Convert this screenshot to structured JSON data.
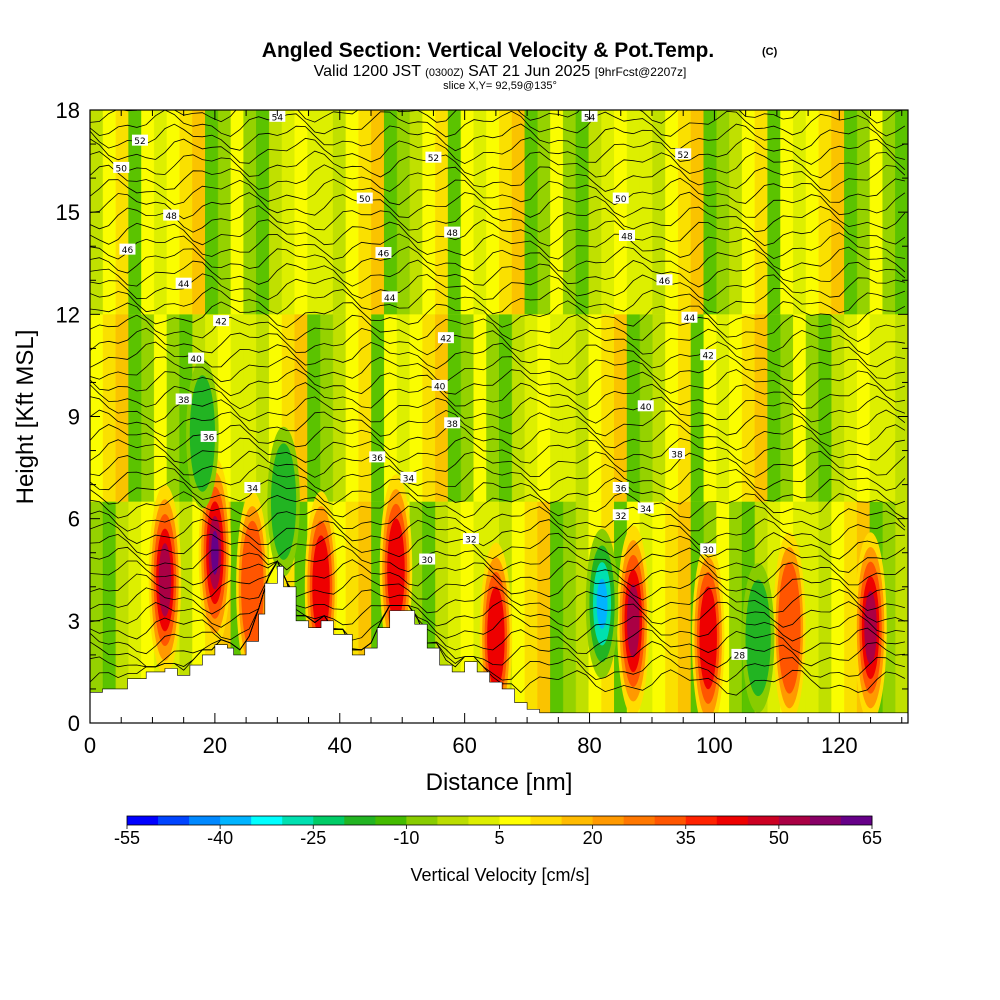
{
  "chart_data": {
    "type": "heatmap",
    "title": "Angled Section: Vertical Velocity & Pot.Temp.",
    "title_tag": "(C)",
    "subtitle": {
      "prefix": "Valid 1200 JST",
      "utc": "(0300Z)",
      "date": "SAT 21 Jun 2025",
      "forecast": "[9hrFcst@2207z]"
    },
    "slice_label": "slice X,Y= 92,59@135°",
    "xlabel": "Distance [nm]",
    "ylabel": "Height [Kft MSL]",
    "xlim": [
      0,
      131
    ],
    "ylim": [
      0,
      18
    ],
    "x_ticks": [
      0,
      20,
      40,
      60,
      80,
      100,
      120
    ],
    "y_ticks": [
      0,
      3,
      6,
      9,
      12,
      15,
      18
    ],
    "colorbar": {
      "title": "Vertical Velocity [cm/s]",
      "min": -55,
      "max": 65,
      "step": 5,
      "tick_labels": [
        "-55",
        "-40",
        "-25",
        "-10",
        "5",
        "20",
        "35",
        "50",
        "65"
      ],
      "colors": [
        "#0000ff",
        "#0044ff",
        "#0088ff",
        "#00b4ff",
        "#00ffff",
        "#00e0b0",
        "#00cc66",
        "#22b422",
        "#44bb00",
        "#88cc00",
        "#bbdd00",
        "#ddee00",
        "#ffff00",
        "#ffdd00",
        "#ffbb00",
        "#ff9900",
        "#ff7700",
        "#ff5500",
        "#ff2200",
        "#ee0000",
        "#cc0022",
        "#aa0044",
        "#880066",
        "#660088"
      ]
    },
    "field_description_units": "cm/s",
    "terrain_profile_kft": [
      [
        0,
        0.9
      ],
      [
        2,
        1.0
      ],
      [
        6,
        1.3
      ],
      [
        9,
        1.5
      ],
      [
        12,
        1.6
      ],
      [
        14,
        1.4
      ],
      [
        16,
        1.7
      ],
      [
        18,
        2.0
      ],
      [
        20,
        2.3
      ],
      [
        22,
        2.2
      ],
      [
        23,
        2.0
      ],
      [
        25,
        2.4
      ],
      [
        27,
        3.2
      ],
      [
        28,
        4.1
      ],
      [
        30,
        4.6
      ],
      [
        31,
        4.0
      ],
      [
        33,
        3.0
      ],
      [
        35,
        2.8
      ],
      [
        37,
        3.0
      ],
      [
        39,
        2.6
      ],
      [
        42,
        2.0
      ],
      [
        44,
        2.2
      ],
      [
        46,
        2.8
      ],
      [
        48,
        3.3
      ],
      [
        50,
        3.3
      ],
      [
        52,
        2.9
      ],
      [
        54,
        2.2
      ],
      [
        56,
        1.7
      ],
      [
        58,
        1.5
      ],
      [
        60,
        1.8
      ],
      [
        62,
        1.5
      ],
      [
        64,
        1.2
      ],
      [
        66,
        1.0
      ],
      [
        68,
        0.6
      ],
      [
        70,
        0.4
      ],
      [
        72,
        0.3
      ],
      [
        131,
        0.3
      ]
    ],
    "updraft_cores": [
      {
        "x": 12,
        "z": 4.2,
        "w": 50
      },
      {
        "x": 20,
        "z": 5.0,
        "w": 60
      },
      {
        "x": 26,
        "z": 4.0,
        "w": 35
      },
      {
        "x": 37,
        "z": 4.0,
        "w": 45
      },
      {
        "x": 49,
        "z": 4.5,
        "w": 40
      },
      {
        "x": 65,
        "z": 2.5,
        "w": 40
      },
      {
        "x": 87,
        "z": 3.0,
        "w": 50
      },
      {
        "x": 99,
        "z": 2.5,
        "w": 45
      },
      {
        "x": 112,
        "z": 2.8,
        "w": 30
      },
      {
        "x": 125,
        "z": 2.8,
        "w": 50
      }
    ],
    "downdraft_cores": [
      {
        "x": 82,
        "z": 3.5,
        "w": -45
      },
      {
        "x": 18,
        "z": 8.5,
        "w": -25
      },
      {
        "x": 31,
        "z": 6.5,
        "w": -20
      },
      {
        "x": 107,
        "z": 2.5,
        "w": -20
      }
    ],
    "isentrope_labels": [
      {
        "x": 30,
        "z": 17.8,
        "text": "54"
      },
      {
        "x": 80,
        "z": 17.8,
        "text": "54"
      },
      {
        "x": 8,
        "z": 17.1,
        "text": "52"
      },
      {
        "x": 55,
        "z": 16.6,
        "text": "52"
      },
      {
        "x": 95,
        "z": 16.7,
        "text": "52"
      },
      {
        "x": 5,
        "z": 16.3,
        "text": "50"
      },
      {
        "x": 44,
        "z": 15.4,
        "text": "50"
      },
      {
        "x": 85,
        "z": 15.4,
        "text": "50"
      },
      {
        "x": 13,
        "z": 14.9,
        "text": "48"
      },
      {
        "x": 58,
        "z": 14.4,
        "text": "48"
      },
      {
        "x": 86,
        "z": 14.3,
        "text": "48"
      },
      {
        "x": 6,
        "z": 13.9,
        "text": "46"
      },
      {
        "x": 47,
        "z": 13.8,
        "text": "46"
      },
      {
        "x": 92,
        "z": 13.0,
        "text": "46"
      },
      {
        "x": 15,
        "z": 12.9,
        "text": "44"
      },
      {
        "x": 48,
        "z": 12.5,
        "text": "44"
      },
      {
        "x": 96,
        "z": 11.9,
        "text": "44"
      },
      {
        "x": 21,
        "z": 11.8,
        "text": "42"
      },
      {
        "x": 57,
        "z": 11.3,
        "text": "42"
      },
      {
        "x": 99,
        "z": 10.8,
        "text": "42"
      },
      {
        "x": 17,
        "z": 10.7,
        "text": "40"
      },
      {
        "x": 56,
        "z": 9.9,
        "text": "40"
      },
      {
        "x": 89,
        "z": 9.3,
        "text": "40"
      },
      {
        "x": 15,
        "z": 9.5,
        "text": "38"
      },
      {
        "x": 58,
        "z": 8.8,
        "text": "38"
      },
      {
        "x": 94,
        "z": 7.9,
        "text": "38"
      },
      {
        "x": 19,
        "z": 8.4,
        "text": "36"
      },
      {
        "x": 46,
        "z": 7.8,
        "text": "36"
      },
      {
        "x": 85,
        "z": 6.9,
        "text": "36"
      },
      {
        "x": 26,
        "z": 6.9,
        "text": "34"
      },
      {
        "x": 51,
        "z": 7.2,
        "text": "34"
      },
      {
        "x": 89,
        "z": 6.3,
        "text": "34"
      },
      {
        "x": 61,
        "z": 5.4,
        "text": "32"
      },
      {
        "x": 85,
        "z": 6.1,
        "text": "32"
      },
      {
        "x": 54,
        "z": 4.8,
        "text": "30"
      },
      {
        "x": 99,
        "z": 5.1,
        "text": "30"
      },
      {
        "x": 104,
        "z": 2.0,
        "text": "28"
      }
    ]
  }
}
